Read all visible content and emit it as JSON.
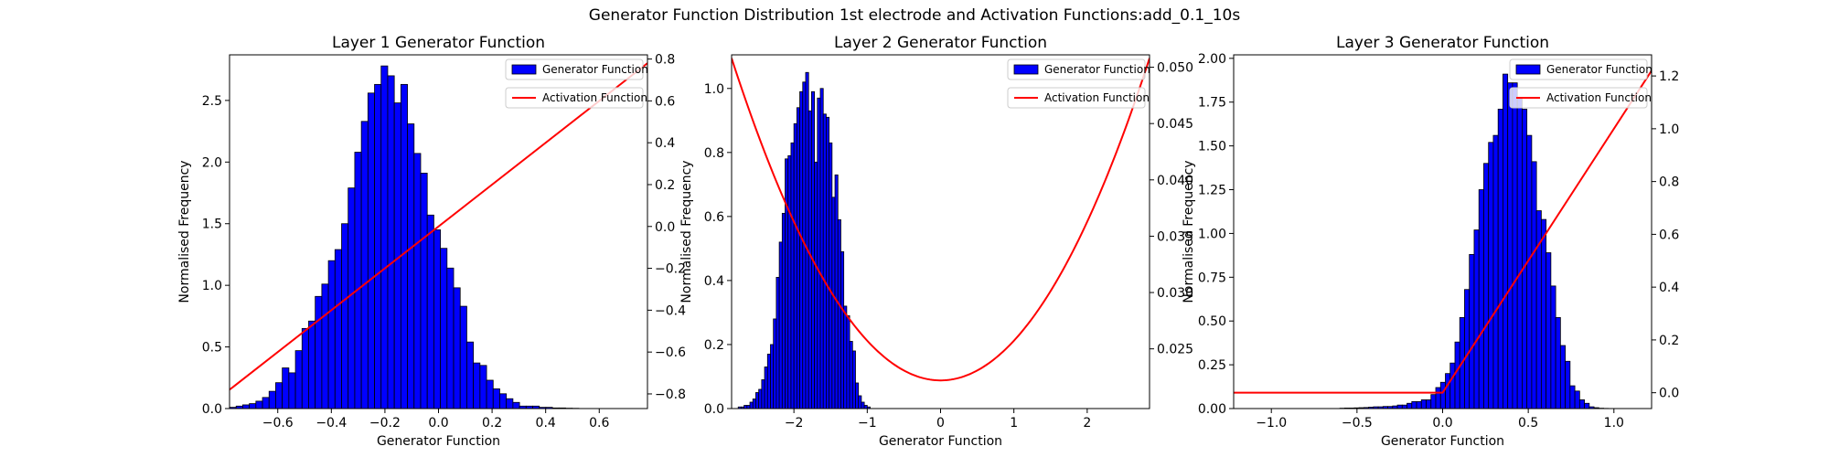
{
  "suptitle": "Generator Function Distribution 1st electrode and Activation Functions:add_0.1_10s",
  "legend": {
    "hist_label": "Generator Function",
    "line_label": "Activation Function"
  },
  "colors": {
    "bar_fill": "#0000ff",
    "bar_edge": "#000000",
    "line": "#ff0000"
  },
  "chart_data": [
    {
      "type": "bar",
      "title": "Layer 1 Generator Function",
      "xlabel": "Generator Function",
      "ylabel": "Normalised Frequency",
      "legend_position": "top-right",
      "xlim": [
        -0.78,
        0.78
      ],
      "ylim": [
        0,
        2.87
      ],
      "ylim_right": [
        -0.87,
        0.82
      ],
      "xticks": [
        -0.6,
        -0.4,
        -0.2,
        0.0,
        0.2,
        0.4,
        0.6
      ],
      "xtick_labels": [
        "−0.6",
        "−0.4",
        "−0.2",
        "0.0",
        "0.2",
        "0.4",
        "0.6"
      ],
      "yticks": [
        0.0,
        0.5,
        1.0,
        1.5,
        2.0,
        2.5
      ],
      "ytick_labels": [
        "0.0",
        "0.5",
        "1.0",
        "1.5",
        "2.0",
        "2.5"
      ],
      "yticks_right": [
        -0.8,
        -0.6,
        -0.4,
        -0.2,
        0.0,
        0.2,
        0.4,
        0.6,
        0.8
      ],
      "ytick_labels_right": [
        "−0.8",
        "−0.6",
        "−0.4",
        "−0.2",
        "0.0",
        "0.2",
        "0.4",
        "0.6",
        "0.8"
      ],
      "histogram": {
        "bin_start": -0.78,
        "bin_width": 0.0246,
        "densities": [
          0.01,
          0.02,
          0.03,
          0.04,
          0.06,
          0.09,
          0.14,
          0.21,
          0.33,
          0.29,
          0.47,
          0.65,
          0.71,
          0.91,
          1.01,
          1.2,
          1.29,
          1.5,
          1.79,
          2.08,
          2.33,
          2.56,
          2.63,
          2.78,
          2.7,
          2.48,
          2.63,
          2.31,
          2.07,
          1.91,
          1.57,
          1.45,
          1.3,
          1.14,
          0.98,
          0.83,
          0.54,
          0.37,
          0.35,
          0.23,
          0.16,
          0.12,
          0.08,
          0.05,
          0.02,
          0.02,
          0.02,
          0.01,
          0.01,
          0.005,
          0.005,
          0.003,
          0.002,
          0,
          0,
          0,
          0,
          0,
          0,
          0,
          0,
          0,
          0
        ]
      },
      "line": {
        "x": [
          -0.78,
          0.78
        ],
        "y": [
          -0.78,
          0.78
        ]
      }
    },
    {
      "type": "bar",
      "title": "Layer 2 Generator Function",
      "xlabel": "Generator Function",
      "ylabel": "Normalised Frequency",
      "legend_position": "top-right",
      "xlim": [
        -2.85,
        2.85
      ],
      "ylim": [
        0,
        1.105
      ],
      "ylim_right": [
        0.0197,
        0.0511
      ],
      "xticks": [
        -2,
        -1,
        0,
        1,
        2
      ],
      "xtick_labels": [
        "−2",
        "−1",
        "0",
        "1",
        "2"
      ],
      "yticks": [
        0.0,
        0.2,
        0.4,
        0.6,
        0.8,
        1.0
      ],
      "ytick_labels": [
        "0.0",
        "0.2",
        "0.4",
        "0.6",
        "0.8",
        "1.0"
      ],
      "yticks_right": [
        0.025,
        0.03,
        0.035,
        0.04,
        0.045,
        0.05
      ],
      "ytick_labels_right": [
        "0.025",
        "0.030",
        "0.035",
        "0.040",
        "0.045",
        "0.050"
      ],
      "histogram": {
        "bin_start": -3.0,
        "bin_width": 0.04,
        "densities": [
          0,
          0,
          0,
          0,
          0,
          0,
          0.005,
          0.005,
          0.01,
          0.01,
          0.02,
          0.03,
          0.05,
          0.06,
          0.09,
          0.13,
          0.17,
          0.2,
          0.28,
          0.41,
          0.52,
          0.61,
          0.78,
          0.79,
          0.83,
          0.89,
          0.94,
          0.99,
          1.02,
          1.05,
          0.93,
          0.99,
          0.77,
          0.97,
          1.0,
          0.92,
          0.91,
          0.83,
          0.66,
          0.73,
          0.59,
          0.49,
          0.32,
          0.29,
          0.21,
          0.18,
          0.08,
          0.04,
          0.02,
          0.01,
          0.005
        ]
      },
      "line": {
        "func": "quadratic",
        "vertex_x": 0,
        "vertex_y": 0.0222,
        "at_xmax_y": 0.0508
      }
    },
    {
      "type": "bar",
      "title": "Layer 3 Generator Function",
      "xlabel": "Generator Function",
      "ylabel": "Normalised Frequency",
      "legend_position": "top-right",
      "xlim": [
        -1.22,
        1.22
      ],
      "ylim": [
        0,
        2.02
      ],
      "ylim_right": [
        -0.06,
        1.28
      ],
      "xticks": [
        -1.0,
        -0.5,
        0.0,
        0.5,
        1.0
      ],
      "xtick_labels": [
        "−1.0",
        "−0.5",
        "0.0",
        "0.5",
        "1.0"
      ],
      "yticks": [
        0.0,
        0.25,
        0.5,
        0.75,
        1.0,
        1.25,
        1.5,
        1.75,
        2.0
      ],
      "ytick_labels": [
        "0.00",
        "0.25",
        "0.50",
        "0.75",
        "1.00",
        "1.25",
        "1.50",
        "1.75",
        "2.00"
      ],
      "yticks_right": [
        0.0,
        0.2,
        0.4,
        0.6,
        0.8,
        1.0,
        1.2
      ],
      "ytick_labels_right": [
        "0.0",
        "0.2",
        "0.4",
        "0.6",
        "0.8",
        "1.0",
        "1.2"
      ],
      "histogram": {
        "bin_start": -0.6,
        "bin_width": 0.028,
        "densities": [
          0.002,
          0.003,
          0.003,
          0.004,
          0.005,
          0.006,
          0.008,
          0.01,
          0.01,
          0.012,
          0.012,
          0.015,
          0.02,
          0.02,
          0.03,
          0.04,
          0.04,
          0.05,
          0.05,
          0.08,
          0.12,
          0.15,
          0.2,
          0.26,
          0.38,
          0.52,
          0.68,
          0.88,
          1.02,
          1.25,
          1.4,
          1.52,
          1.56,
          1.71,
          1.91,
          1.86,
          1.86,
          1.77,
          1.71,
          1.56,
          1.41,
          1.13,
          1.08,
          0.89,
          0.7,
          0.52,
          0.36,
          0.27,
          0.13,
          0.1,
          0.05,
          0.03,
          0.01,
          0.005,
          0.002,
          0.001,
          0,
          0,
          0,
          0,
          0,
          0,
          0,
          0,
          0,
          0
        ]
      },
      "line": {
        "x": [
          -1.22,
          0.0,
          1.22
        ],
        "y": [
          0.0,
          0.0,
          1.22
        ]
      }
    }
  ]
}
